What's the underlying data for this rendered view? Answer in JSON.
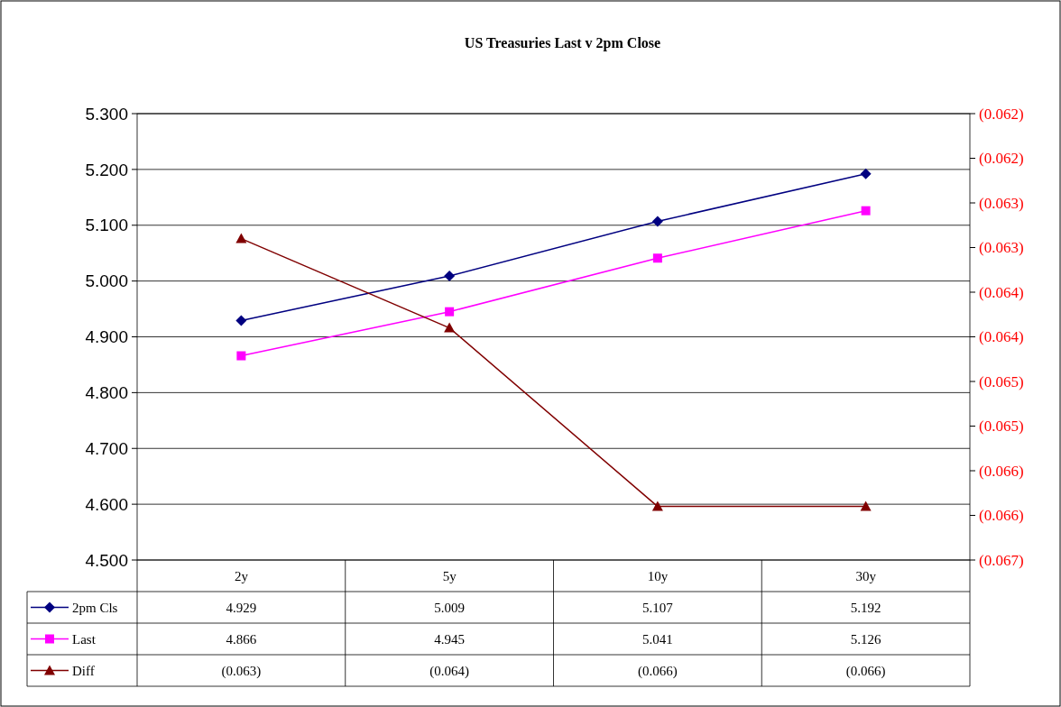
{
  "chart_data": {
    "type": "line",
    "title": "US Treasuries Last v 2pm Close",
    "categories": [
      "2y",
      "5y",
      "10y",
      "30y"
    ],
    "series": [
      {
        "name": "2pm Cls",
        "color": "#000080",
        "marker": "diamond",
        "values": [
          4.929,
          5.009,
          5.107,
          5.192
        ],
        "value_labels": [
          "4.929",
          "5.009",
          "5.107",
          "5.192"
        ]
      },
      {
        "name": "Last",
        "color": "#ff00ff",
        "marker": "square",
        "values": [
          4.866,
          4.945,
          5.041,
          5.126
        ],
        "value_labels": [
          "4.866",
          "4.945",
          "5.041",
          "5.126"
        ]
      },
      {
        "name": "Diff",
        "color": "#800000",
        "marker": "triangle",
        "axis": "y2",
        "values": [
          -0.0634,
          -0.0644,
          -0.0664,
          -0.0664
        ],
        "value_labels": [
          "(0.063)",
          "(0.064)",
          "(0.066)",
          "(0.066)"
        ]
      }
    ],
    "ylim": [
      4.5,
      5.3
    ],
    "yticks": [
      {
        "value": 4.5,
        "label": "4.500"
      },
      {
        "value": 4.6,
        "label": "4.600"
      },
      {
        "value": 4.7,
        "label": "4.700"
      },
      {
        "value": 4.8,
        "label": "4.800"
      },
      {
        "value": 4.9,
        "label": "4.900"
      },
      {
        "value": 5.0,
        "label": "5.000"
      },
      {
        "value": 5.1,
        "label": "5.100"
      },
      {
        "value": 5.2,
        "label": "5.200"
      },
      {
        "value": 5.3,
        "label": "5.300"
      }
    ],
    "y2lim": [
      -0.067,
      -0.062
    ],
    "y2ticks": [
      {
        "value": -0.067,
        "label": "(0.067)"
      },
      {
        "value": -0.0665,
        "label": "(0.066)"
      },
      {
        "value": -0.066,
        "label": "(0.066)"
      },
      {
        "value": -0.0655,
        "label": "(0.065)"
      },
      {
        "value": -0.065,
        "label": "(0.065)"
      },
      {
        "value": -0.0645,
        "label": "(0.064)"
      },
      {
        "value": -0.064,
        "label": "(0.064)"
      },
      {
        "value": -0.0635,
        "label": "(0.063)"
      },
      {
        "value": -0.063,
        "label": "(0.063)"
      },
      {
        "value": -0.0625,
        "label": "(0.062)"
      },
      {
        "value": -0.062,
        "label": "(0.062)"
      }
    ],
    "grid": "y",
    "legend": "bottom"
  }
}
